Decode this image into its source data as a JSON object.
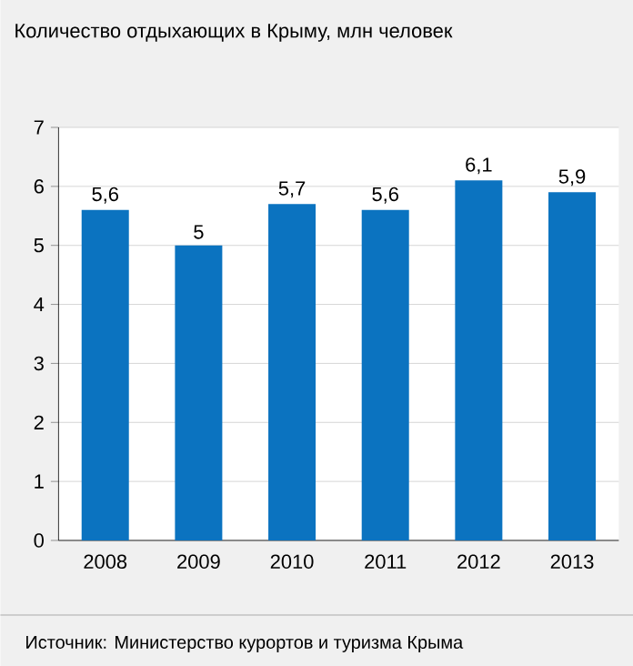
{
  "chart_data": {
    "type": "bar",
    "title": "Количество отдыхающих в Крыму, млн человек",
    "categories": [
      "2008",
      "2009",
      "2010",
      "2011",
      "2012",
      "2013"
    ],
    "values": [
      5.6,
      5,
      5.7,
      5.6,
      6.1,
      5.9
    ],
    "value_labels": [
      "5,6",
      "5",
      "5,7",
      "5,6",
      "6,1",
      "5,9"
    ],
    "color": "#0b73c0",
    "ylim": [
      0,
      7
    ],
    "yticks": [
      0,
      1,
      2,
      3,
      4,
      5,
      6,
      7
    ],
    "grid": "y",
    "annotations": [
      "Источник: Министерство курортов и туризма Крыма"
    ]
  }
}
